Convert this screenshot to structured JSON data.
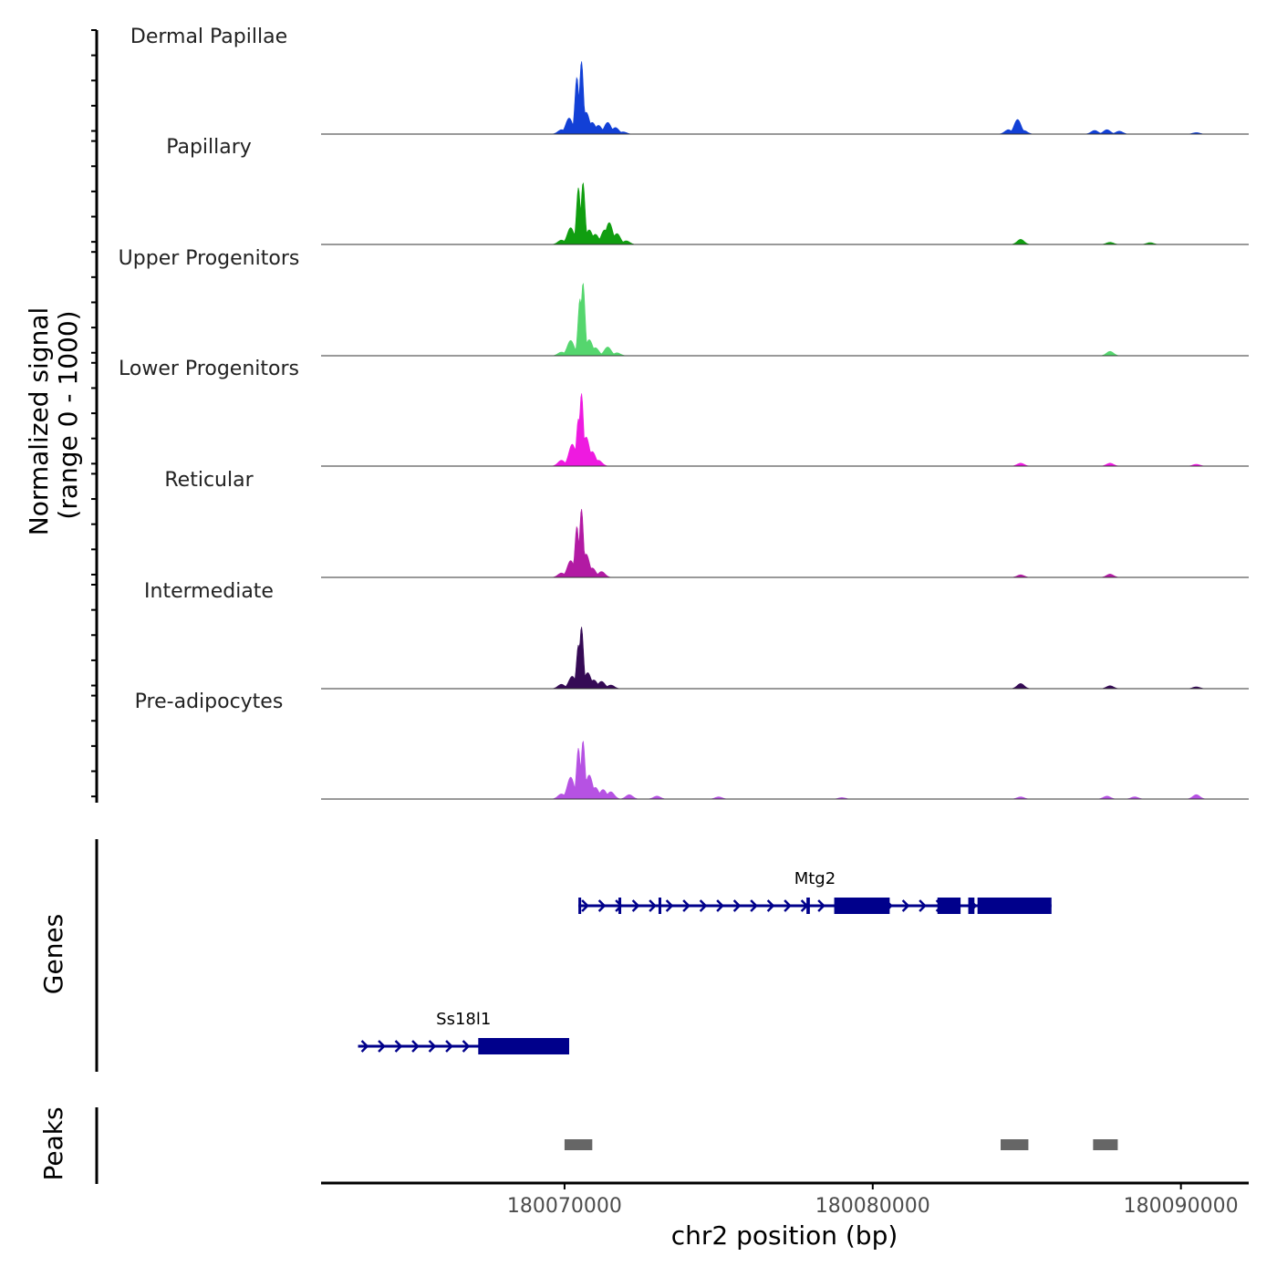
{
  "chart_data": {
    "type": "area",
    "title": "",
    "chromosome": "chr2",
    "xlabel": "chr2 position (bp)",
    "xlim": [
      180062100,
      180092200
    ],
    "x_ticks": [
      180070000,
      180080000,
      180090000
    ],
    "x_tick_labels": [
      "180070000",
      "180080000",
      "180090000"
    ],
    "ylabel_line1": "Normalized signal",
    "ylabel_line2": "(range 0 - 1000)",
    "ylim": [
      0,
      1000
    ],
    "signal_tracks": [
      {
        "name": "Dermal Papillae",
        "color": "#1240d6",
        "peaks": [
          [
            180069900,
            60
          ],
          [
            180070150,
            220
          ],
          [
            180070400,
            780
          ],
          [
            180070550,
            1000
          ],
          [
            180070700,
            300
          ],
          [
            180070900,
            160
          ],
          [
            180071100,
            120
          ],
          [
            180071400,
            160
          ],
          [
            180071650,
            90
          ],
          [
            180071900,
            30
          ],
          [
            180084400,
            60
          ],
          [
            180084700,
            200
          ],
          [
            180084900,
            50
          ],
          [
            180087200,
            50
          ],
          [
            180087600,
            60
          ],
          [
            180088000,
            40
          ],
          [
            180090500,
            20
          ]
        ]
      },
      {
        "name": "Papillary",
        "color": "#109e10",
        "peaks": [
          [
            180069900,
            60
          ],
          [
            180070200,
            230
          ],
          [
            180070450,
            780
          ],
          [
            180070600,
            850
          ],
          [
            180070800,
            200
          ],
          [
            180071000,
            140
          ],
          [
            180071300,
            200
          ],
          [
            180071450,
            300
          ],
          [
            180071700,
            150
          ],
          [
            180072000,
            50
          ],
          [
            180084800,
            70
          ],
          [
            180087700,
            30
          ],
          [
            180089000,
            25
          ]
        ]
      },
      {
        "name": "Upper Progenitors",
        "color": "#55d66e",
        "peaks": [
          [
            180069900,
            50
          ],
          [
            180070200,
            210
          ],
          [
            180070500,
            780
          ],
          [
            180070600,
            1000
          ],
          [
            180070800,
            220
          ],
          [
            180071000,
            110
          ],
          [
            180071400,
            120
          ],
          [
            180071700,
            40
          ],
          [
            180087700,
            60
          ]
        ]
      },
      {
        "name": "Lower Progenitors",
        "color": "#ee1ae0",
        "peaks": [
          [
            180069900,
            80
          ],
          [
            180070250,
            300
          ],
          [
            180070450,
            650
          ],
          [
            180070550,
            1000
          ],
          [
            180070700,
            400
          ],
          [
            180070900,
            200
          ],
          [
            180071100,
            80
          ],
          [
            180084800,
            40
          ],
          [
            180087700,
            40
          ],
          [
            180090500,
            25
          ]
        ]
      },
      {
        "name": "Reticular",
        "color": "#b21aa3",
        "peaks": [
          [
            180069900,
            60
          ],
          [
            180070200,
            230
          ],
          [
            180070400,
            700
          ],
          [
            180070550,
            940
          ],
          [
            180070700,
            320
          ],
          [
            180070900,
            130
          ],
          [
            180071200,
            80
          ],
          [
            180084800,
            35
          ],
          [
            180087700,
            45
          ]
        ]
      },
      {
        "name": "Intermediate",
        "color": "#350a55",
        "peaks": [
          [
            180069900,
            60
          ],
          [
            180070250,
            170
          ],
          [
            180070450,
            600
          ],
          [
            180070550,
            850
          ],
          [
            180070750,
            220
          ],
          [
            180070950,
            120
          ],
          [
            180071200,
            100
          ],
          [
            180071500,
            50
          ],
          [
            180084800,
            70
          ],
          [
            180087700,
            40
          ],
          [
            180090500,
            25
          ]
        ]
      },
      {
        "name": "Pre-adipocytes",
        "color": "#b652e3",
        "peaks": [
          [
            180069900,
            70
          ],
          [
            180070200,
            300
          ],
          [
            180070450,
            700
          ],
          [
            180070600,
            800
          ],
          [
            180070800,
            330
          ],
          [
            180071000,
            160
          ],
          [
            180071250,
            130
          ],
          [
            180071500,
            100
          ],
          [
            180072100,
            60
          ],
          [
            180073000,
            40
          ],
          [
            180075000,
            30
          ],
          [
            180079000,
            20
          ],
          [
            180084800,
            30
          ],
          [
            180087600,
            40
          ],
          [
            180088500,
            30
          ],
          [
            180090500,
            60
          ]
        ]
      }
    ],
    "gene_track_label": "Genes",
    "genes": [
      {
        "name": "Mtg2",
        "strand": "+",
        "start": 180070450,
        "end": 180085800,
        "exons": [
          [
            180070450,
            180070520
          ],
          [
            180071750,
            180071820
          ],
          [
            180073050,
            180073120
          ],
          [
            180077850,
            180077960
          ],
          [
            180078750,
            180080550
          ],
          [
            180082100,
            180082850
          ],
          [
            180083100,
            180083300
          ],
          [
            180083400,
            180085800
          ]
        ]
      },
      {
        "name": "Ss18l1",
        "strand": "+",
        "start": 180063300,
        "end": 180070150,
        "exons": [
          [
            180067200,
            180070150
          ]
        ]
      }
    ],
    "peak_track_label": "Peaks",
    "peak_regions": [
      [
        180070000,
        180070900
      ],
      [
        180084150,
        180085050
      ],
      [
        180087150,
        180087950
      ]
    ],
    "colors": {
      "gene": "#00008b",
      "peak": "#666666",
      "axis": "#000000",
      "baseline": "#333333"
    }
  }
}
